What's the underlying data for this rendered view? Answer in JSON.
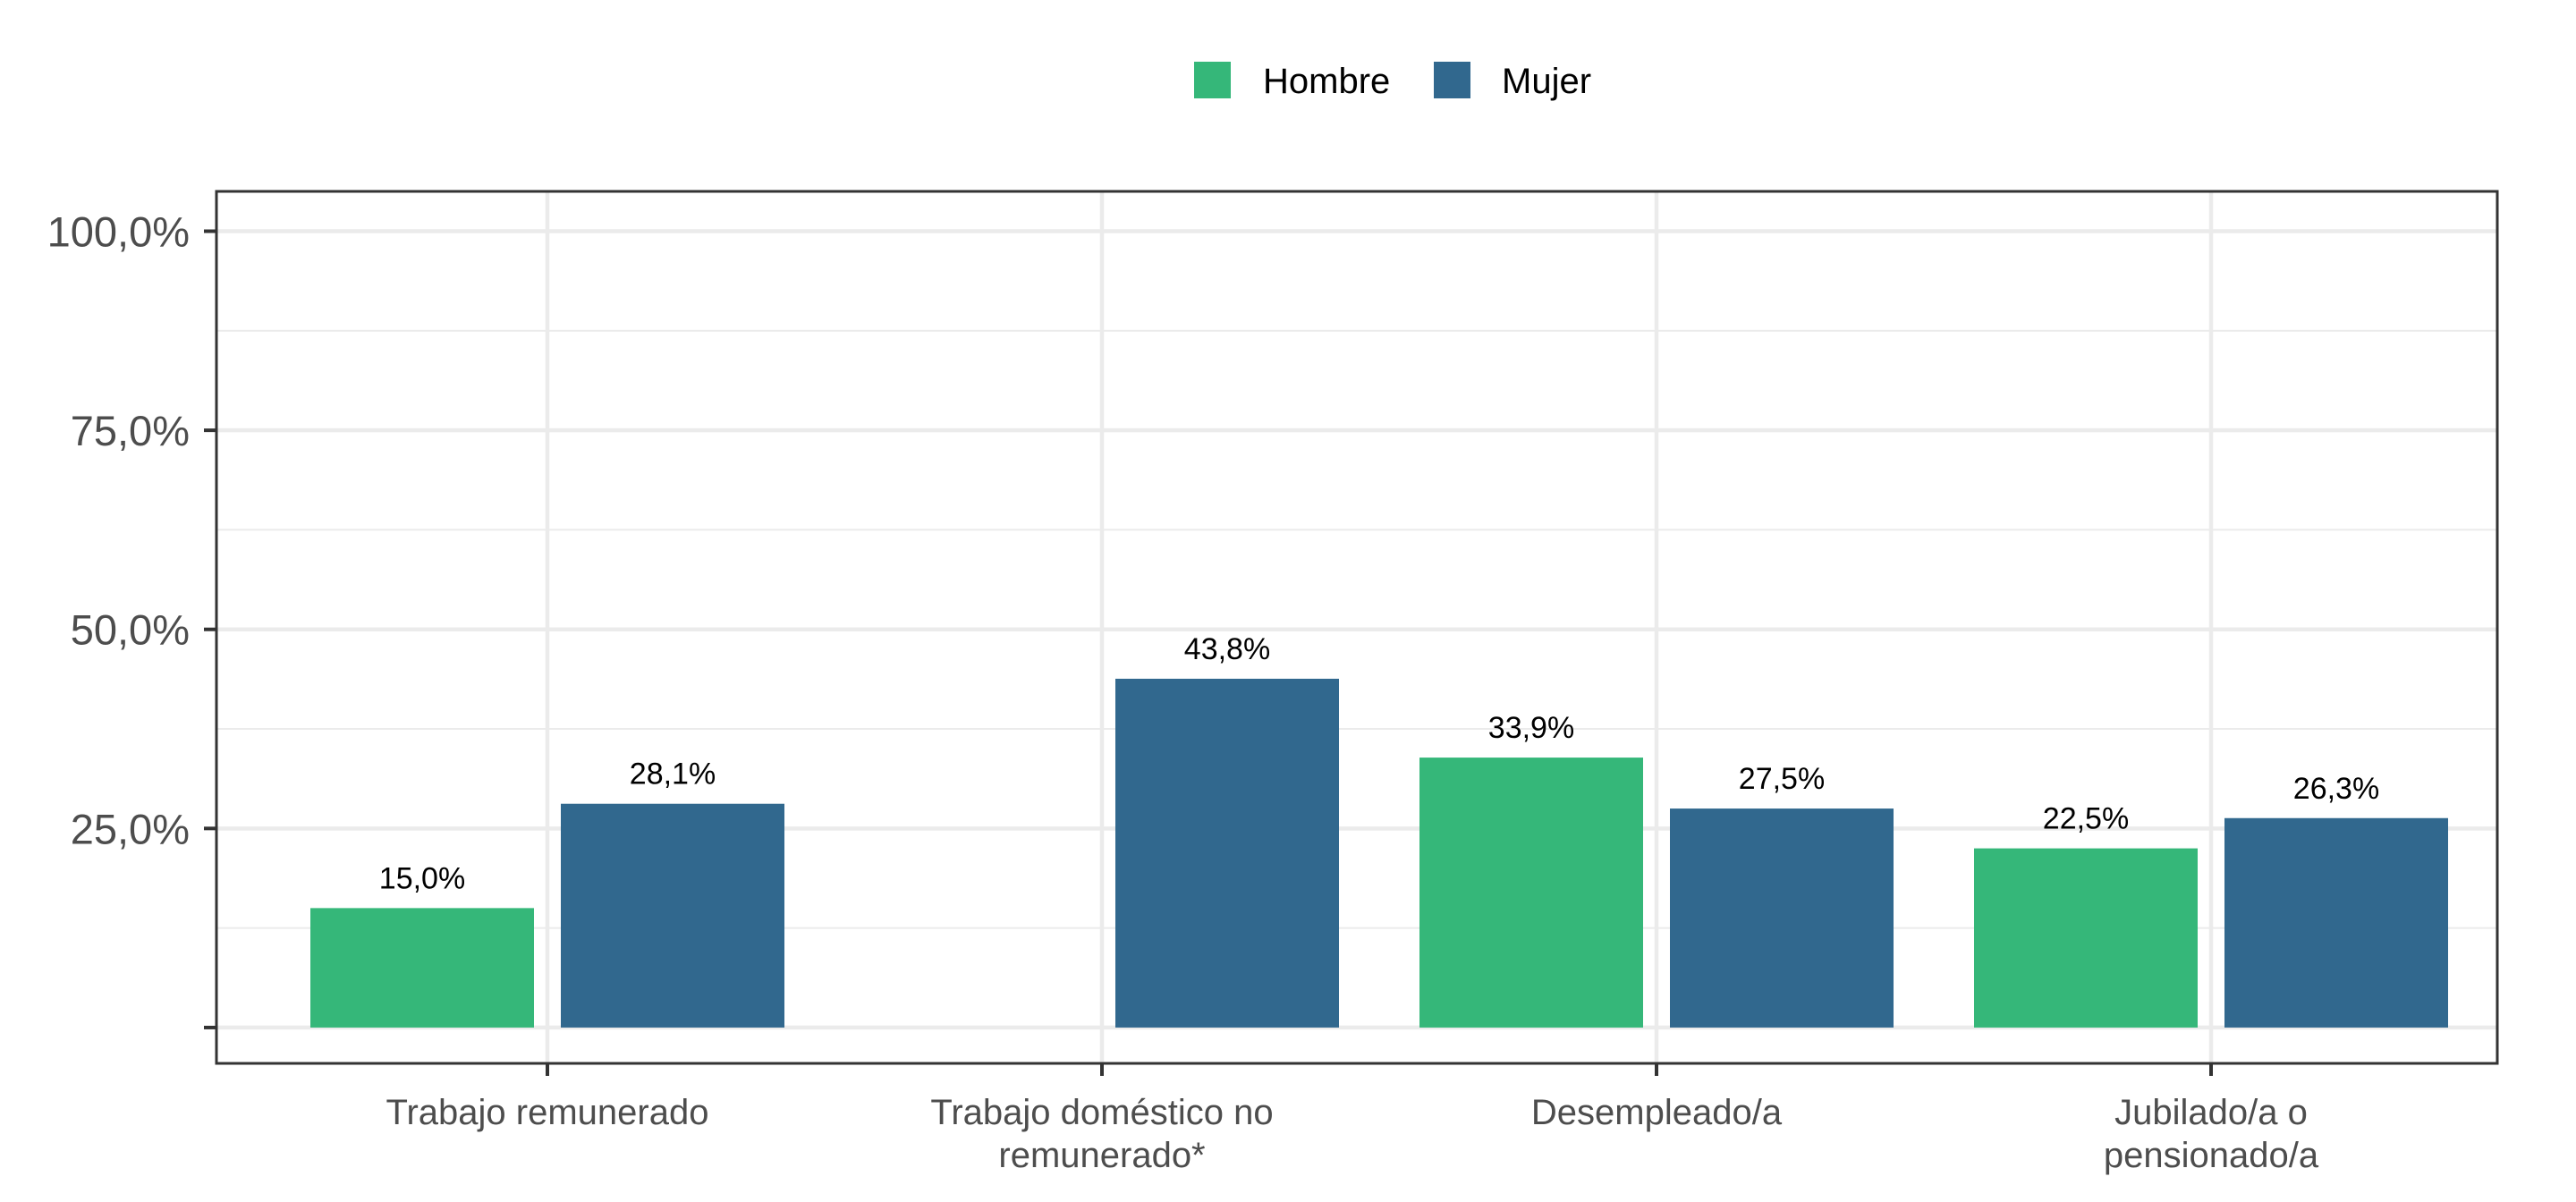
{
  "chart_data": {
    "type": "bar",
    "categories": [
      [
        "Trabajo remunerado"
      ],
      [
        "Trabajo doméstico no",
        "remunerado*"
      ],
      [
        "Desempleado/a"
      ],
      [
        "Jubilado/a o",
        "pensionado/a"
      ]
    ],
    "series": [
      {
        "name": "Hombre",
        "color": "#35b779",
        "values": [
          15.0,
          null,
          33.9,
          22.5
        ],
        "labels": [
          "15,0%",
          "",
          "33,9%",
          "22,5%"
        ]
      },
      {
        "name": "Mujer",
        "color": "#31688e",
        "values": [
          28.1,
          43.8,
          27.5,
          26.3
        ],
        "labels": [
          "28,1%",
          "43,8%",
          "27,5%",
          "26,3%"
        ]
      }
    ],
    "ylim": [
      -4.5,
      105
    ],
    "y_ticks": [
      {
        "value": 0,
        "label": ""
      },
      {
        "value": 25,
        "label": "25,0%"
      },
      {
        "value": 50,
        "label": "50,0%"
      },
      {
        "value": 75,
        "label": "75,0%"
      },
      {
        "value": 100,
        "label": "100,0%"
      }
    ],
    "y_minor_ticks": [
      12.5,
      37.5,
      62.5,
      87.5
    ],
    "grid": true,
    "legend_position": "top-center",
    "title": "",
    "xlabel": "",
    "ylabel": ""
  }
}
